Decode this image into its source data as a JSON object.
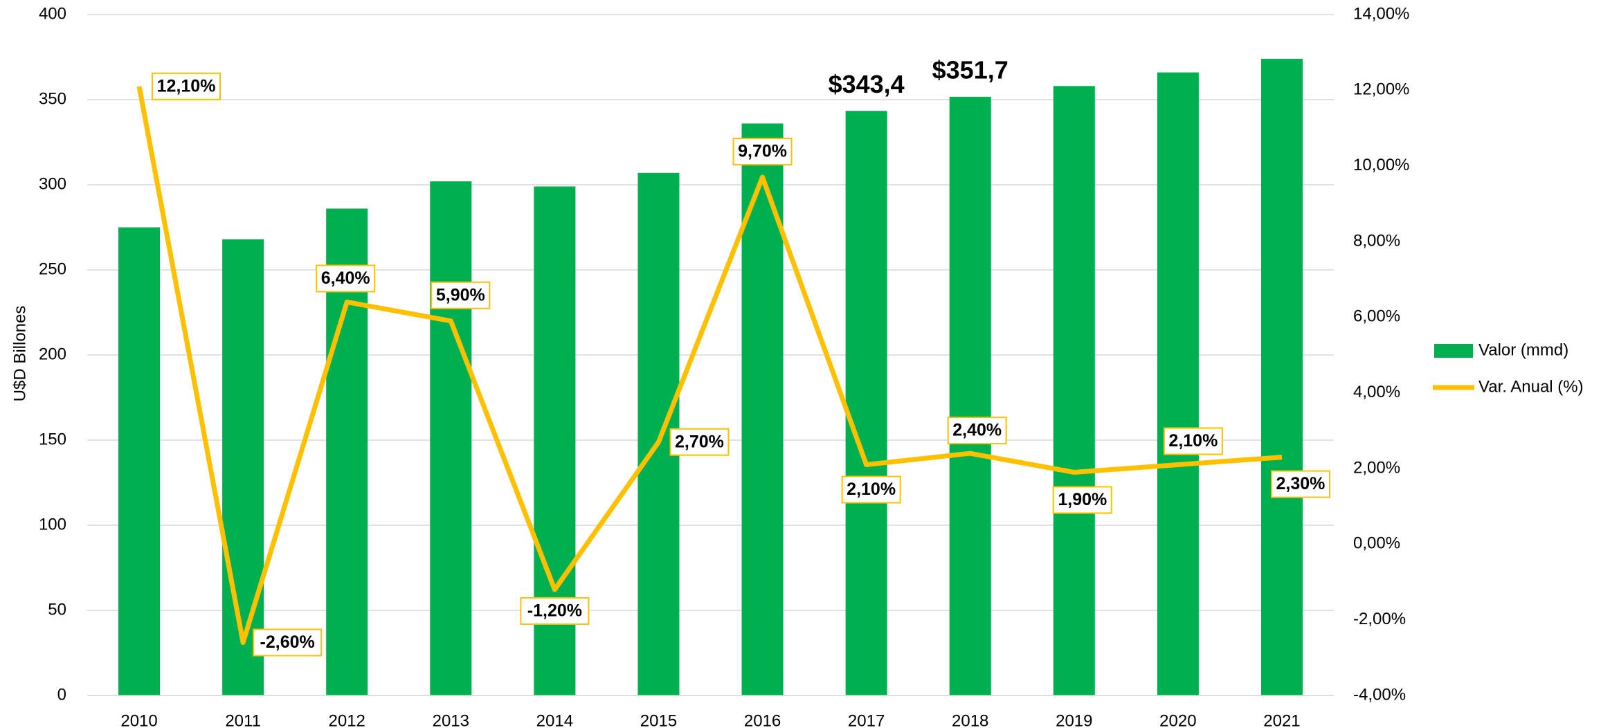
{
  "chart_data": {
    "type": "bar",
    "categories": [
      "2010",
      "2011",
      "2012",
      "2013",
      "2014",
      "2015",
      "2016",
      "2017",
      "2018",
      "2019",
      "2020",
      "2021"
    ],
    "ylabel": "U$D Billones",
    "ylim": [
      0,
      400
    ],
    "yticks": [
      0,
      50,
      100,
      150,
      200,
      250,
      300,
      350,
      400
    ],
    "y2lim": [
      -4,
      14
    ],
    "y2ticks": [
      {
        "value": -4,
        "label": "-4,00%"
      },
      {
        "value": -2,
        "label": "-2,00%"
      },
      {
        "value": 0,
        "label": "0,00%"
      },
      {
        "value": 2,
        "label": "2,00%"
      },
      {
        "value": 4,
        "label": "4,00%"
      },
      {
        "value": 6,
        "label": "6,00%"
      },
      {
        "value": 8,
        "label": "8,00%"
      },
      {
        "value": 10,
        "label": "10,00%"
      },
      {
        "value": 12,
        "label": "12,00%"
      },
      {
        "value": 14,
        "label": "14,00%"
      }
    ],
    "grid": true,
    "legend": "right",
    "series": [
      {
        "name": "Valor (mmd)",
        "type": "bar",
        "color": "#00b050",
        "values": [
          275,
          268,
          286,
          302,
          299,
          307,
          336,
          343.4,
          351.7,
          358,
          366,
          374
        ],
        "value_labels": [
          null,
          null,
          null,
          null,
          null,
          null,
          null,
          "$343,4",
          "$351,7",
          null,
          null,
          null
        ]
      },
      {
        "name": "Var. Anual (%)",
        "type": "line",
        "axis": "y2",
        "color": "#ffc000",
        "values": [
          12.1,
          -2.6,
          6.4,
          5.9,
          -1.2,
          2.7,
          9.7,
          2.1,
          2.4,
          1.9,
          2.1,
          2.3
        ],
        "value_labels": [
          "12,10%",
          "-2,60%",
          "6,40%",
          "5,90%",
          "-1,20%",
          "2,70%",
          "9,70%",
          "2,10%",
          "2,40%",
          "1,90%",
          "2,10%",
          "2,30%"
        ]
      }
    ]
  }
}
